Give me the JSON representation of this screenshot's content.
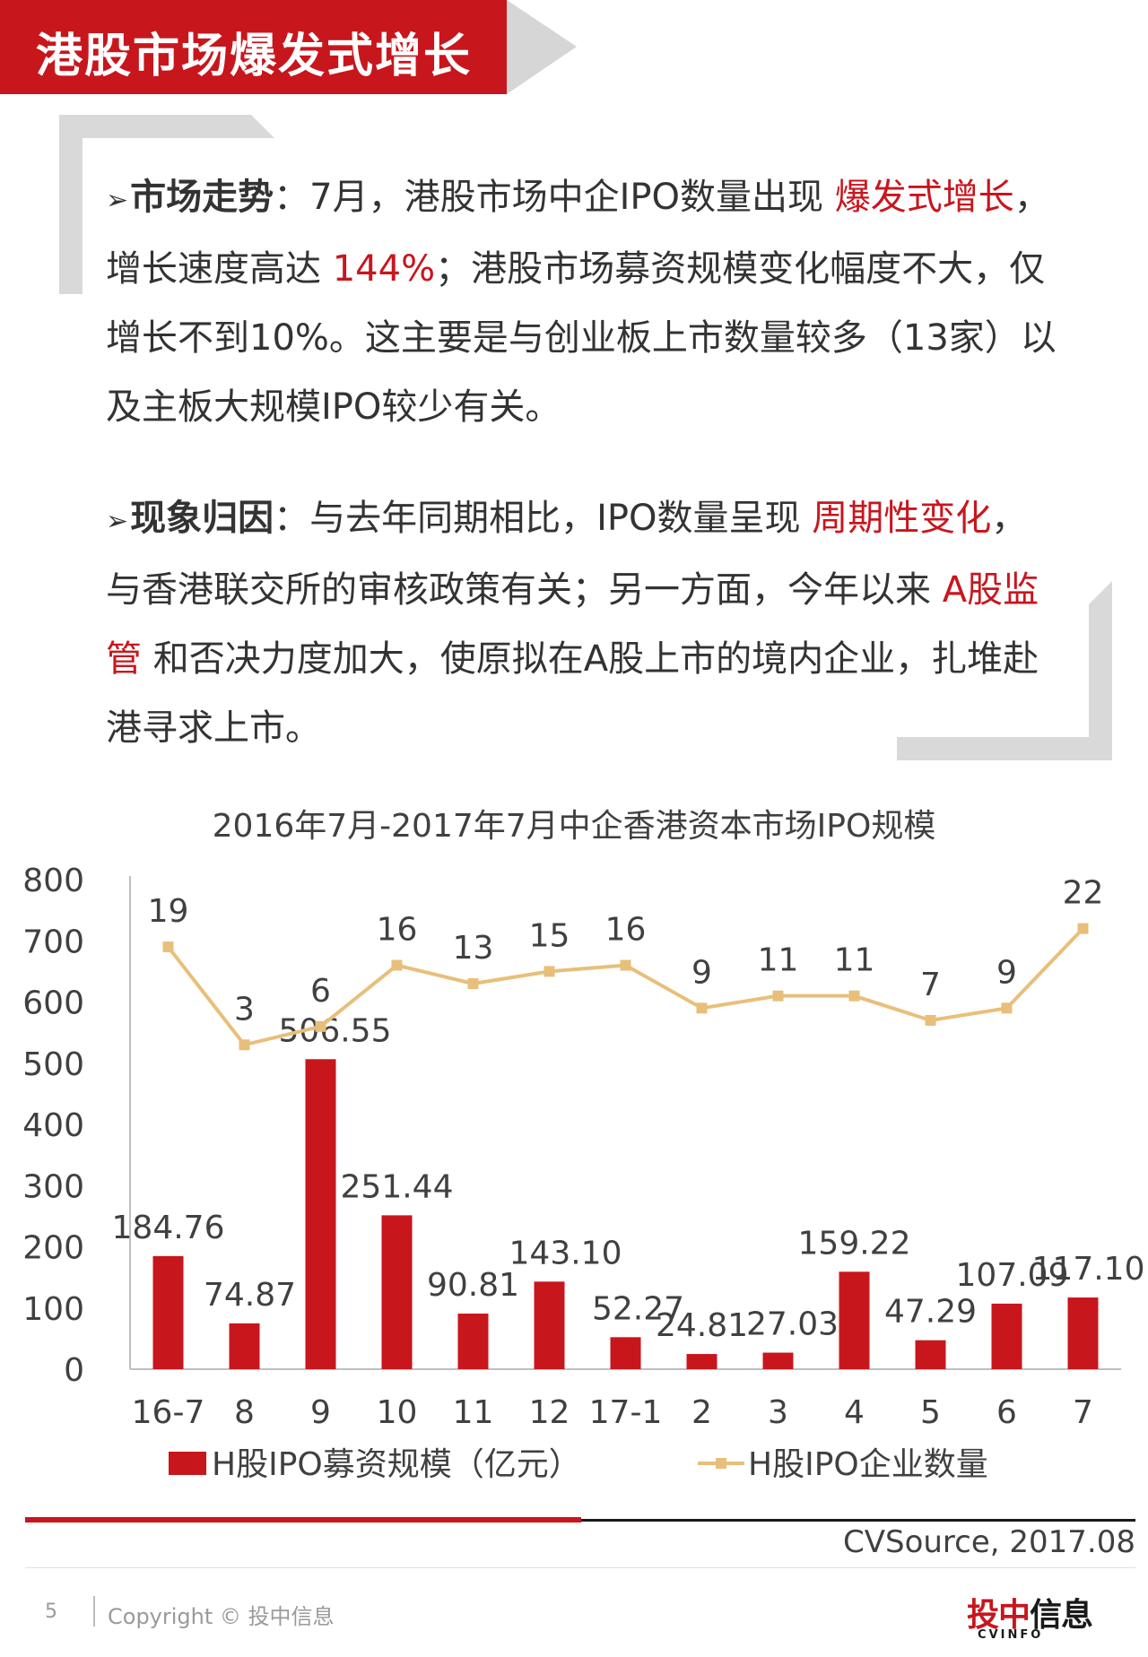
{
  "header": {
    "title": "港股市场爆发式增长"
  },
  "para1": {
    "lead": "市场走势",
    "t1": "：7月，港股市场中企IPO数量出现 ",
    "h1": "爆发式增长",
    "t2": "，增长速度高达 ",
    "h2": "144%",
    "t3": "；港股市场募资规模变化幅度不大，仅增长不到10%。这主要是与创业板上市数量较多（13家）以及主板大规模IPO较少有关。"
  },
  "para2": {
    "lead": "现象归因",
    "t1": "：与去年同期相比，IPO数量呈现 ",
    "h1": "周期性变化",
    "t2": "，与香港联交所的审核政策有关；另一方面，今年以来 ",
    "h2": "A股监管",
    "t3": " 和否决力度加大，使原拟在A股上市的境内企业，扎堆赴港寻求上市。"
  },
  "chart_data": {
    "type": "bar",
    "title": "2016年7月-2017年7月中企香港资本市场IPO规模",
    "categories": [
      "16-7",
      "8",
      "9",
      "10",
      "11",
      "12",
      "17-1",
      "2",
      "3",
      "4",
      "5",
      "6",
      "7"
    ],
    "ylim": [
      0,
      800
    ],
    "yticks": [
      0,
      100,
      200,
      300,
      400,
      500,
      600,
      700,
      800
    ],
    "series": [
      {
        "name": "H股IPO募资规模（亿元）",
        "type": "bar",
        "values": [
          184.76,
          74.87,
          506.55,
          251.44,
          90.81,
          143.1,
          52.27,
          24.81,
          27.03,
          159.22,
          47.29,
          107.09,
          117.1
        ],
        "labels": [
          "184.76",
          "74.87",
          "506.55",
          "251.44",
          "90.81",
          "143.10",
          "52.27",
          "24.81",
          "27.03",
          "159.22",
          "47.29",
          "107.09",
          "117.10"
        ],
        "color": "#c8161d"
      },
      {
        "name": "H股IPO企业数量",
        "type": "line",
        "values": [
          19,
          3,
          6,
          16,
          13,
          15,
          16,
          9,
          11,
          11,
          7,
          9,
          22
        ],
        "labels": [
          "19",
          "3",
          "6",
          "16",
          "13",
          "15",
          "16",
          "9",
          "11",
          "11",
          "7",
          "9",
          "22"
        ],
        "color": "#e8bf7a"
      }
    ],
    "legend": "bottom",
    "grid": false
  },
  "footer": {
    "source": "CVSource, 2017.08",
    "page": "5",
    "copyright": "Copyright © 投中信息",
    "logo_text": "投中信息",
    "logo_sub": "CVINFO"
  },
  "colors": {
    "brand_red": "#c8161d",
    "line_gold": "#e8bf7a",
    "frame_gray": "#d9d9d9"
  }
}
